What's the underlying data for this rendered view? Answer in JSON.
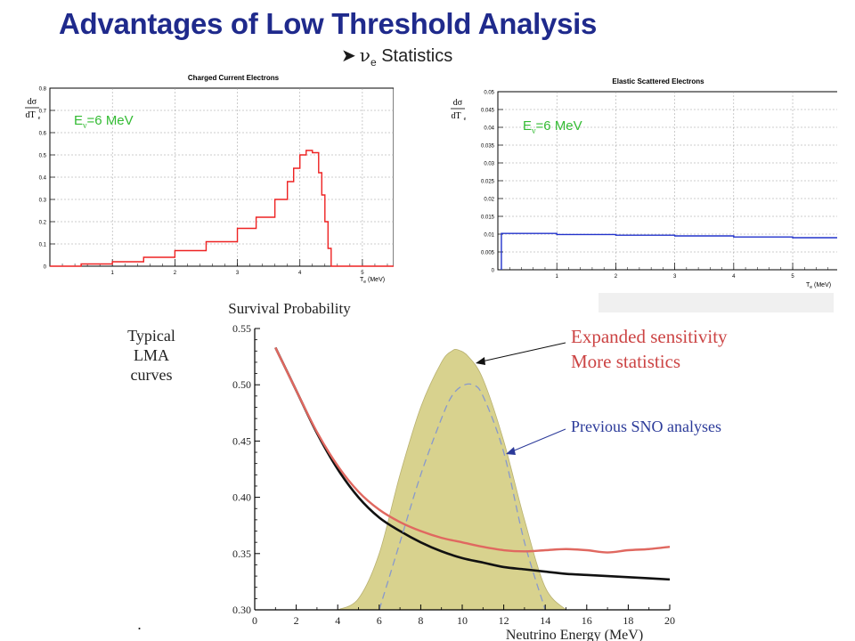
{
  "slide": {
    "title": "Advantages of Low Threshold Analysis",
    "bullet_symbol": "ν",
    "bullet_sub": "e",
    "bullet_text": "Statistics"
  },
  "chart_data": [
    {
      "type": "line",
      "title": "Charged Current Electrons",
      "xlabel": "T",
      "xlabel_sub": "e",
      "xlabel_unit": "(MeV)",
      "ylabel_num": "dσ",
      "ylabel_den": "dT",
      "ylabel_den_sub": "e",
      "annotation": "E",
      "annotation_sub": "ν",
      "annotation_rest": "=6 MeV",
      "annotation_color": "#33bb33",
      "line_color": "#ee2222",
      "xlim": [
        0,
        5.5
      ],
      "ylim": [
        0,
        0.8
      ],
      "xticks": [
        1,
        2,
        3,
        4,
        5
      ],
      "yticks": [
        0,
        0.1,
        0.2,
        0.3,
        0.4,
        0.5,
        0.6,
        0.7,
        0.8
      ],
      "x": [
        0.0,
        0.5,
        1.0,
        1.5,
        2.0,
        2.5,
        3.0,
        3.3,
        3.6,
        3.8,
        3.9,
        4.0,
        4.1,
        4.2,
        4.3,
        4.35,
        4.4,
        4.45,
        4.5,
        5.5
      ],
      "y": [
        0.0,
        0.01,
        0.02,
        0.04,
        0.07,
        0.11,
        0.17,
        0.22,
        0.3,
        0.38,
        0.44,
        0.5,
        0.52,
        0.51,
        0.42,
        0.32,
        0.2,
        0.08,
        0.0,
        0.0
      ]
    },
    {
      "type": "line",
      "title": "Elastic Scattered Electrons",
      "xlabel": "T",
      "xlabel_sub": "e",
      "xlabel_unit": "(MeV)",
      "ylabel_num": "dσ",
      "ylabel_den": "dT",
      "ylabel_den_sub": "e",
      "annotation": "E",
      "annotation_sub": "ν",
      "annotation_rest": "=6 MeV",
      "annotation_color": "#33bb33",
      "line_color": "#2233cc",
      "xlim": [
        0,
        5.8
      ],
      "ylim": [
        0,
        0.05
      ],
      "xticks": [
        1,
        2,
        3,
        4,
        5
      ],
      "yticks": [
        0,
        0.005,
        0.01,
        0.015,
        0.02,
        0.025,
        0.03,
        0.035,
        0.04,
        0.045,
        0.05
      ],
      "ytick_labels": [
        "0",
        "0.005",
        "0.01",
        "0.015",
        "0.02",
        "0.025",
        "0.03",
        "0.035",
        "0.04",
        "0.045",
        "0.05"
      ],
      "x": [
        0.06,
        0.06,
        0.1,
        1.0,
        2.0,
        3.0,
        4.0,
        5.0,
        5.8
      ],
      "y": [
        0.0,
        0.0102,
        0.0102,
        0.0099,
        0.0097,
        0.0095,
        0.0092,
        0.009,
        0.0089
      ]
    },
    {
      "type": "line",
      "title": "Survival Probability",
      "xlabel": "Neutrino Energy (MeV)",
      "xlim": [
        0,
        20
      ],
      "ylim": [
        0.3,
        0.55
      ],
      "xticks": [
        0,
        2,
        4,
        6,
        8,
        10,
        12,
        14,
        16,
        18,
        20
      ],
      "yticks": [
        0.3,
        0.35,
        0.4,
        0.45,
        0.5,
        0.55
      ],
      "ytick_labels": [
        "0.30",
        "0.35",
        "0.40",
        "0.45",
        "0.50",
        "0.55"
      ],
      "side_label": [
        "Typical",
        "LMA",
        "curves"
      ],
      "annotations": [
        {
          "lines": [
            "Expanded sensitivity",
            "More statistics"
          ],
          "color": "#cc4444"
        },
        {
          "lines": [
            "Previous SNO analyses"
          ],
          "color": "#2b3a99"
        }
      ],
      "series": [
        {
          "style": "line",
          "color": "#e06860",
          "x": [
            1,
            2,
            3,
            4,
            5,
            6,
            7,
            8,
            9,
            10,
            11,
            12,
            13,
            14,
            15,
            16,
            17,
            18,
            19,
            20
          ],
          "y": [
            0.533,
            0.495,
            0.458,
            0.428,
            0.405,
            0.389,
            0.378,
            0.37,
            0.364,
            0.36,
            0.356,
            0.353,
            0.352,
            0.353,
            0.354,
            0.353,
            0.351,
            0.353,
            0.354,
            0.356
          ]
        },
        {
          "style": "line",
          "color": "#111111",
          "x": [
            1,
            2,
            3,
            4,
            5,
            6,
            7,
            8,
            9,
            10,
            11,
            12,
            13,
            14,
            15,
            16,
            17,
            18,
            19,
            20
          ],
          "y": [
            0.533,
            0.495,
            0.457,
            0.425,
            0.4,
            0.382,
            0.37,
            0.36,
            0.352,
            0.346,
            0.342,
            0.338,
            0.336,
            0.334,
            0.332,
            0.331,
            0.33,
            0.329,
            0.328,
            0.327
          ]
        },
        {
          "style": "fill",
          "color": "#d8d28e",
          "x": [
            4.0,
            5.0,
            6.0,
            7.0,
            8.0,
            9.0,
            9.5,
            9.8,
            10.3,
            11.0,
            12.0,
            13.0,
            14.0,
            15.0
          ],
          "y": [
            0.3,
            0.31,
            0.35,
            0.42,
            0.48,
            0.52,
            0.53,
            0.531,
            0.525,
            0.505,
            0.45,
            0.38,
            0.32,
            0.3
          ]
        },
        {
          "style": "dashed",
          "color": "#8899cc",
          "x": [
            6.0,
            7.0,
            8.0,
            9.0,
            9.5,
            10.0,
            10.5,
            11.0,
            12.0,
            13.0,
            14.0
          ],
          "y": [
            0.3,
            0.36,
            0.42,
            0.47,
            0.49,
            0.499,
            0.5,
            0.49,
            0.44,
            0.36,
            0.3
          ]
        }
      ]
    }
  ]
}
